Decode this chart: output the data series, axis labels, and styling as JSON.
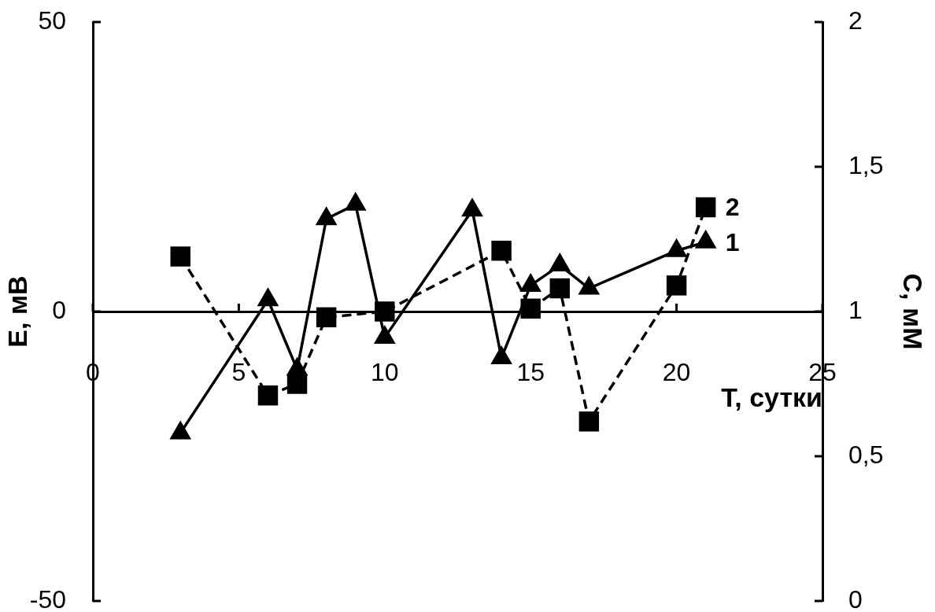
{
  "chart_data": {
    "type": "line",
    "xlabel": "T, сутки",
    "ylabel": "E, мВ",
    "y2label": "C, мМ",
    "xlim": [
      0,
      25
    ],
    "xticks": [
      0,
      5,
      10,
      15,
      20,
      25
    ],
    "ylim": [
      -50,
      50
    ],
    "yticks": [
      -50,
      0,
      50
    ],
    "y2lim": [
      0,
      2
    ],
    "y2ticks": [
      0,
      {
        "value": 0.5,
        "label": "0,5"
      },
      1,
      {
        "value": 1.5,
        "label": "1,5"
      },
      2
    ],
    "grid": false,
    "legend": false,
    "series": [
      {
        "name": "1",
        "color": "#000000",
        "marker": "triangle",
        "line_style": "solid",
        "x": [
          3,
          6,
          7,
          8,
          9,
          10,
          13,
          14,
          15,
          16,
          17,
          20,
          21
        ],
        "values": [
          -21,
          2,
          -10,
          16,
          18.5,
          -4.5,
          17.5,
          -8,
          4.5,
          8,
          4,
          10.5,
          12
        ]
      },
      {
        "name": "2",
        "color": "#000000",
        "marker": "square",
        "line_style": "dashed",
        "axis": "y2",
        "x": [
          3,
          6,
          7,
          8,
          10,
          14,
          15,
          16,
          17,
          20,
          21
        ],
        "values": [
          1.19,
          0.71,
          0.75,
          0.98,
          1.0,
          1.21,
          1.01,
          1.08,
          0.62,
          1.09,
          1.36
        ]
      }
    ]
  }
}
